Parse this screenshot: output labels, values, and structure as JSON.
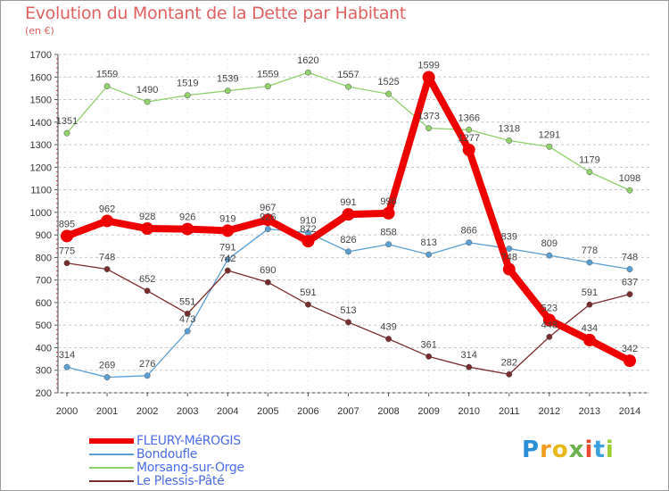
{
  "title": "Evolution du Montant de la Dette par Habitant",
  "subtitle": "(en €)",
  "chart_data": {
    "type": "line",
    "title": "Evolution du Montant de la Dette par Habitant",
    "ylabel": "(en €)",
    "x": [
      "2000",
      "2001",
      "2002",
      "2003",
      "2004",
      "2005",
      "2006",
      "2007",
      "2008",
      "2009",
      "2010",
      "2011",
      "2012",
      "2013",
      "2014"
    ],
    "yticks": [
      200,
      300,
      400,
      500,
      600,
      700,
      800,
      900,
      1000,
      1100,
      1200,
      1300,
      1400,
      1500,
      1600,
      1700
    ],
    "ylim": [
      200,
      1700
    ],
    "grid": "horizontal dashed",
    "legend_position": "bottom-left",
    "series": [
      {
        "name": "Morsang-sur-Orge",
        "color": "#8fd16b",
        "values": [
          1351,
          1559,
          1490,
          1519,
          1539,
          1559,
          1620,
          1557,
          1525,
          1373,
          1366,
          1318,
          1291,
          1179,
          1098
        ]
      },
      {
        "name": "Bondoufle",
        "color": "#5a9fd4",
        "values": [
          314,
          269,
          276,
          473,
          791,
          926,
          910,
          826,
          858,
          813,
          866,
          839,
          809,
          778,
          748
        ]
      },
      {
        "name": "Le Plessis-Pâté",
        "color": "#7a2b2b",
        "values": [
          775,
          748,
          652,
          551,
          742,
          690,
          591,
          513,
          439,
          361,
          314,
          282,
          448,
          591,
          637
        ]
      },
      {
        "name": "FLEURY-MéROGIS",
        "color": "#ee0000",
        "values": [
          895,
          962,
          928,
          926,
          919,
          967,
          872,
          991,
          996,
          1599,
          1277,
          748,
          523,
          434,
          342
        ]
      }
    ]
  },
  "legend": [
    {
      "label": "FLEURY-MéROGIS",
      "color": "#ee0000"
    },
    {
      "label": "Bondoufle",
      "color": "#5a9fd4"
    },
    {
      "label": "Morsang-sur-Orge",
      "color": "#8fd16b"
    },
    {
      "label": "Le Plessis-Pâté",
      "color": "#7a2b2b"
    }
  ],
  "logo": {
    "text": "Proxiti",
    "colors": [
      "#2a8fd8",
      "#f29a1f",
      "#e8b81a",
      "#6ab04c",
      "#e84a2f",
      "#3aa0e0",
      "#9acd32"
    ]
  }
}
